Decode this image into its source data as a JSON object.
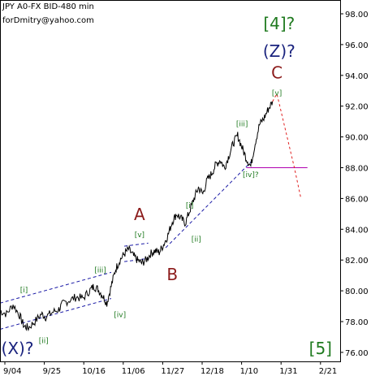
{
  "header": {
    "title": "JPY A0-FX BID-480 min",
    "author": "forDmitry@yahoo.com"
  },
  "chart_data": {
    "type": "line",
    "title": "JPY A0-FX BID-480 min",
    "symbol": "JPY A0-FX",
    "price_type": "BID",
    "timeframe": "480 min",
    "grid": false,
    "y_axis_side": "right",
    "ylim": [
      75,
      99
    ],
    "y_ticks": [
      "98.00",
      "96.00",
      "94.00",
      "92.00",
      "90.00",
      "88.00",
      "86.00",
      "84.00",
      "82.00",
      "80.00",
      "78.00",
      "76.00"
    ],
    "y_tick_values": [
      98,
      96,
      94,
      92,
      90,
      88,
      86,
      84,
      82,
      80,
      78,
      76
    ],
    "x_labels": [
      "9/04",
      "9/25",
      "10/16",
      "11/06",
      "11/27",
      "12/18",
      "1/10",
      "1/31",
      "2/21"
    ],
    "price_series": [
      [
        0,
        78.7
      ],
      [
        3,
        78.5
      ],
      [
        6,
        79.1
      ],
      [
        9,
        78.4
      ],
      [
        11,
        77.7
      ],
      [
        13,
        77.6
      ],
      [
        16,
        78.0
      ],
      [
        19,
        78.5
      ],
      [
        21,
        78.3
      ],
      [
        24,
        78.6
      ],
      [
        27,
        78.8
      ],
      [
        29,
        79.2
      ],
      [
        32,
        79.4
      ],
      [
        35,
        79.6
      ],
      [
        38,
        79.5
      ],
      [
        41,
        80.0
      ],
      [
        43,
        80.3
      ],
      [
        45,
        80.1
      ],
      [
        47,
        79.7
      ],
      [
        49,
        79.2
      ],
      [
        51,
        80.3
      ],
      [
        53,
        81.4
      ],
      [
        55,
        82.0
      ],
      [
        57,
        82.4
      ],
      [
        59,
        82.7
      ],
      [
        61,
        82.3
      ],
      [
        63,
        82.0
      ],
      [
        65,
        81.8
      ],
      [
        67,
        82.0
      ],
      [
        69,
        82.4
      ],
      [
        71,
        82.6
      ],
      [
        73,
        82.5
      ],
      [
        75,
        83.0
      ],
      [
        77,
        83.6
      ],
      [
        79,
        84.5
      ],
      [
        81,
        85.0
      ],
      [
        83,
        84.7
      ],
      [
        85,
        84.4
      ],
      [
        87,
        85.2
      ],
      [
        89,
        86.0
      ],
      [
        91,
        86.7
      ],
      [
        93,
        86.3
      ],
      [
        95,
        87.2
      ],
      [
        97,
        87.6
      ],
      [
        99,
        88.2
      ],
      [
        101,
        88.5
      ],
      [
        103,
        88.0
      ],
      [
        105,
        88.8
      ],
      [
        107,
        89.6
      ],
      [
        109,
        90.1
      ],
      [
        111,
        89.3
      ],
      [
        113,
        88.6
      ],
      [
        115,
        88.1
      ],
      [
        117,
        89.6
      ],
      [
        119,
        90.8
      ],
      [
        121,
        91.2
      ],
      [
        123,
        91.8
      ],
      [
        125,
        92.3
      ]
    ],
    "forecast": {
      "path": [
        [
          125,
          92.3
        ],
        [
          127,
          92.8
        ],
        [
          135,
          88.0
        ],
        [
          138,
          86.0
        ]
      ],
      "target_level": 88.0
    },
    "channels": [
      {
        "name": "wave (X)-[iv]",
        "from": [
          0,
          79.2
        ],
        "to": [
          51,
          81.2
        ],
        "parallel_from": [
          0,
          77.5
        ],
        "parallel_to": [
          51,
          79.5
        ]
      },
      {
        "name": "wave B",
        "from": [
          57,
          82.9
        ],
        "to": [
          68,
          83.1
        ],
        "parallel_from": [
          57,
          81.9
        ],
        "parallel_to": [
          68,
          82.1
        ]
      },
      {
        "name": "wave C",
        "from": [
          76,
          82.8
        ],
        "to": [
          116,
          88.5
        ]
      }
    ],
    "annotations": [
      {
        "text": "[4]?",
        "color": "#1f7a1f",
        "size": "large",
        "x": 128,
        "y": 97.0
      },
      {
        "text": "(Z)?",
        "color": "#1a237e",
        "size": "large",
        "x": 128,
        "y": 95.2
      },
      {
        "text": "C",
        "color": "#8b1a1a",
        "size": "large",
        "x": 127,
        "y": 93.8
      },
      {
        "text": "[v]",
        "color": "#1f7a1f",
        "size": "small",
        "x": 127,
        "y": 92.7
      },
      {
        "text": "[iii]",
        "color": "#1f7a1f",
        "size": "small",
        "x": 111,
        "y": 90.7
      },
      {
        "text": "[iv]?",
        "color": "#1f7a1f",
        "size": "small",
        "x": 115,
        "y": 87.4
      },
      {
        "text": "[i]",
        "color": "#1f7a1f",
        "size": "small",
        "x": 87,
        "y": 85.4
      },
      {
        "text": "[ii]",
        "color": "#1f7a1f",
        "size": "small",
        "x": 90,
        "y": 83.2
      },
      {
        "text": "A",
        "color": "#8b1a1a",
        "size": "large",
        "x": 64,
        "y": 84.6
      },
      {
        "text": "[v]",
        "color": "#1f7a1f",
        "size": "small",
        "x": 64,
        "y": 83.5
      },
      {
        "text": "B",
        "color": "#8b1a1a",
        "size": "large",
        "x": 79,
        "y": 80.7
      },
      {
        "text": "[iii]",
        "color": "#1f7a1f",
        "size": "small",
        "x": 46,
        "y": 81.2
      },
      {
        "text": "[i]",
        "color": "#1f7a1f",
        "size": "small",
        "x": 11,
        "y": 79.9
      },
      {
        "text": "[iv]",
        "color": "#1f7a1f",
        "size": "small",
        "x": 55,
        "y": 78.3
      },
      {
        "text": "[ii]",
        "color": "#1f7a1f",
        "size": "small",
        "x": 20,
        "y": 76.6
      },
      {
        "text": "(X)?",
        "color": "#1a237e",
        "size": "large",
        "x": 8,
        "y": 75.9
      },
      {
        "text": "[5]",
        "color": "#1f7a1f",
        "size": "large",
        "x": 147,
        "y": 75.9
      }
    ]
  }
}
